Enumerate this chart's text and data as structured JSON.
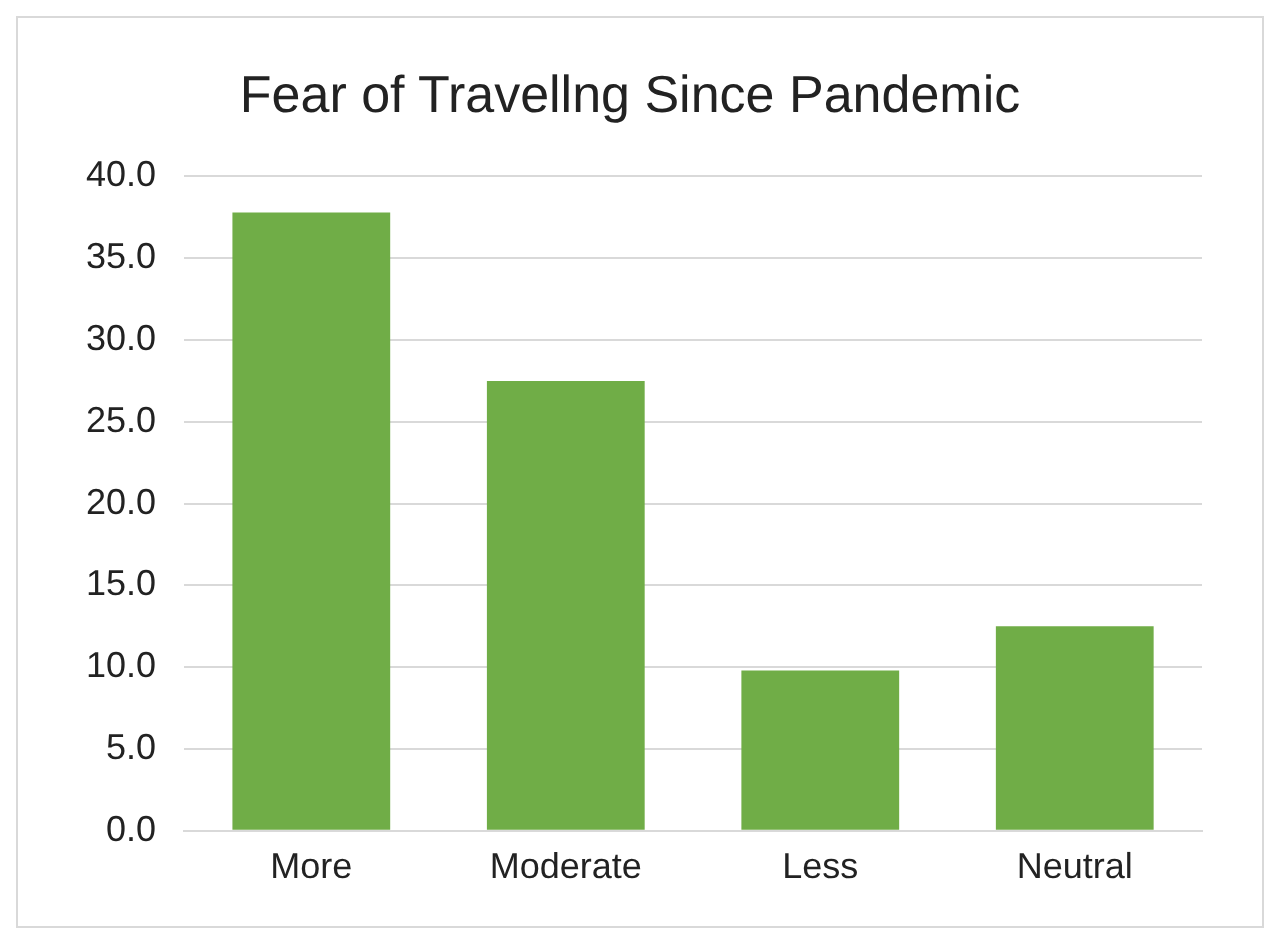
{
  "chart_data": {
    "type": "bar",
    "title": "Fear of Travellng Since Pandemic",
    "categories": [
      "More",
      "Moderate",
      "Less",
      "Neutral"
    ],
    "values": [
      37.8,
      27.5,
      9.8,
      12.5
    ],
    "color": "#70ad47",
    "ylim": [
      0,
      40
    ],
    "yticks": [
      {
        "value": 0,
        "label": "0.0"
      },
      {
        "value": 5,
        "label": "5.0"
      },
      {
        "value": 10,
        "label": "10.0"
      },
      {
        "value": 15,
        "label": "15.0"
      },
      {
        "value": 20,
        "label": "20.0"
      },
      {
        "value": 25,
        "label": "25.0"
      },
      {
        "value": 30,
        "label": "30.0"
      },
      {
        "value": 35,
        "label": "35.0"
      },
      {
        "value": 40,
        "label": "40.0"
      }
    ],
    "grid": "y"
  }
}
